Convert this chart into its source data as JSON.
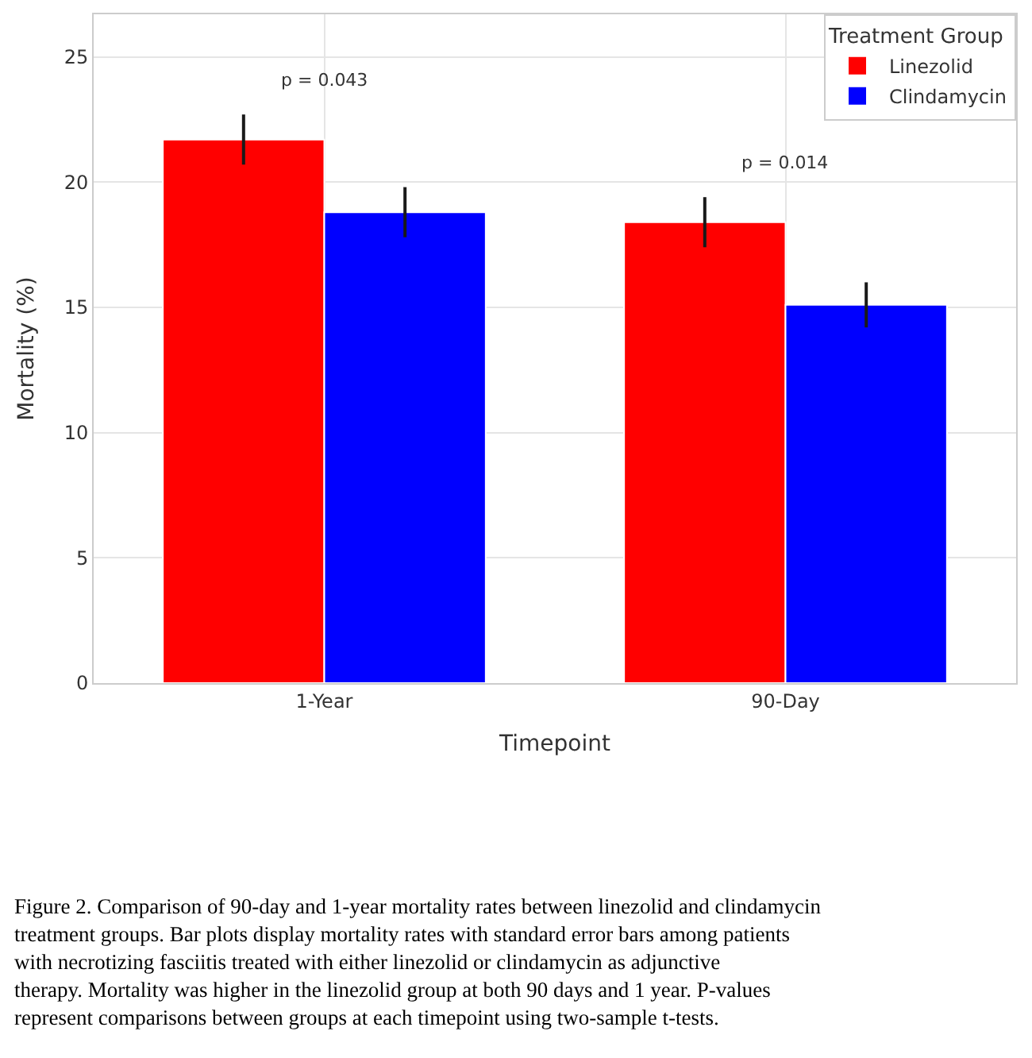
{
  "chart_data": {
    "type": "bar",
    "categories": [
      "1-Year",
      "90-Day"
    ],
    "series": [
      {
        "name": "Linezolid",
        "color": "#ff0000",
        "values": [
          21.7,
          18.4
        ],
        "errors": [
          1.0,
          1.0
        ]
      },
      {
        "name": "Clindamycin",
        "color": "#0000ff",
        "values": [
          18.8,
          15.1
        ],
        "errors": [
          1.0,
          0.9
        ]
      }
    ],
    "xlabel": "Timepoint",
    "ylabel": "Mortality (%)",
    "legend_title": "Treatment Group",
    "legend": "top right",
    "ylim": [
      0,
      26.7
    ],
    "yticks": [
      0,
      5,
      10,
      15,
      20,
      25
    ],
    "grid": true,
    "annotations": [
      "p = 0.043",
      "p = 0.014",
      "Figure 2. Comparison of 90-day and 1-year mortality rates between linezolid and clindamycin treatment groups. Bar plots display mortality rates with standard error bars among patients with necrotizing fasciitis treated with either linezolid or clindamycin as adjunctive therapy. Mortality was higher in the linezolid group at both 90 days and 1 year. P-values represent comparisons between groups at each timepoint using two-sample t-tests."
    ]
  }
}
